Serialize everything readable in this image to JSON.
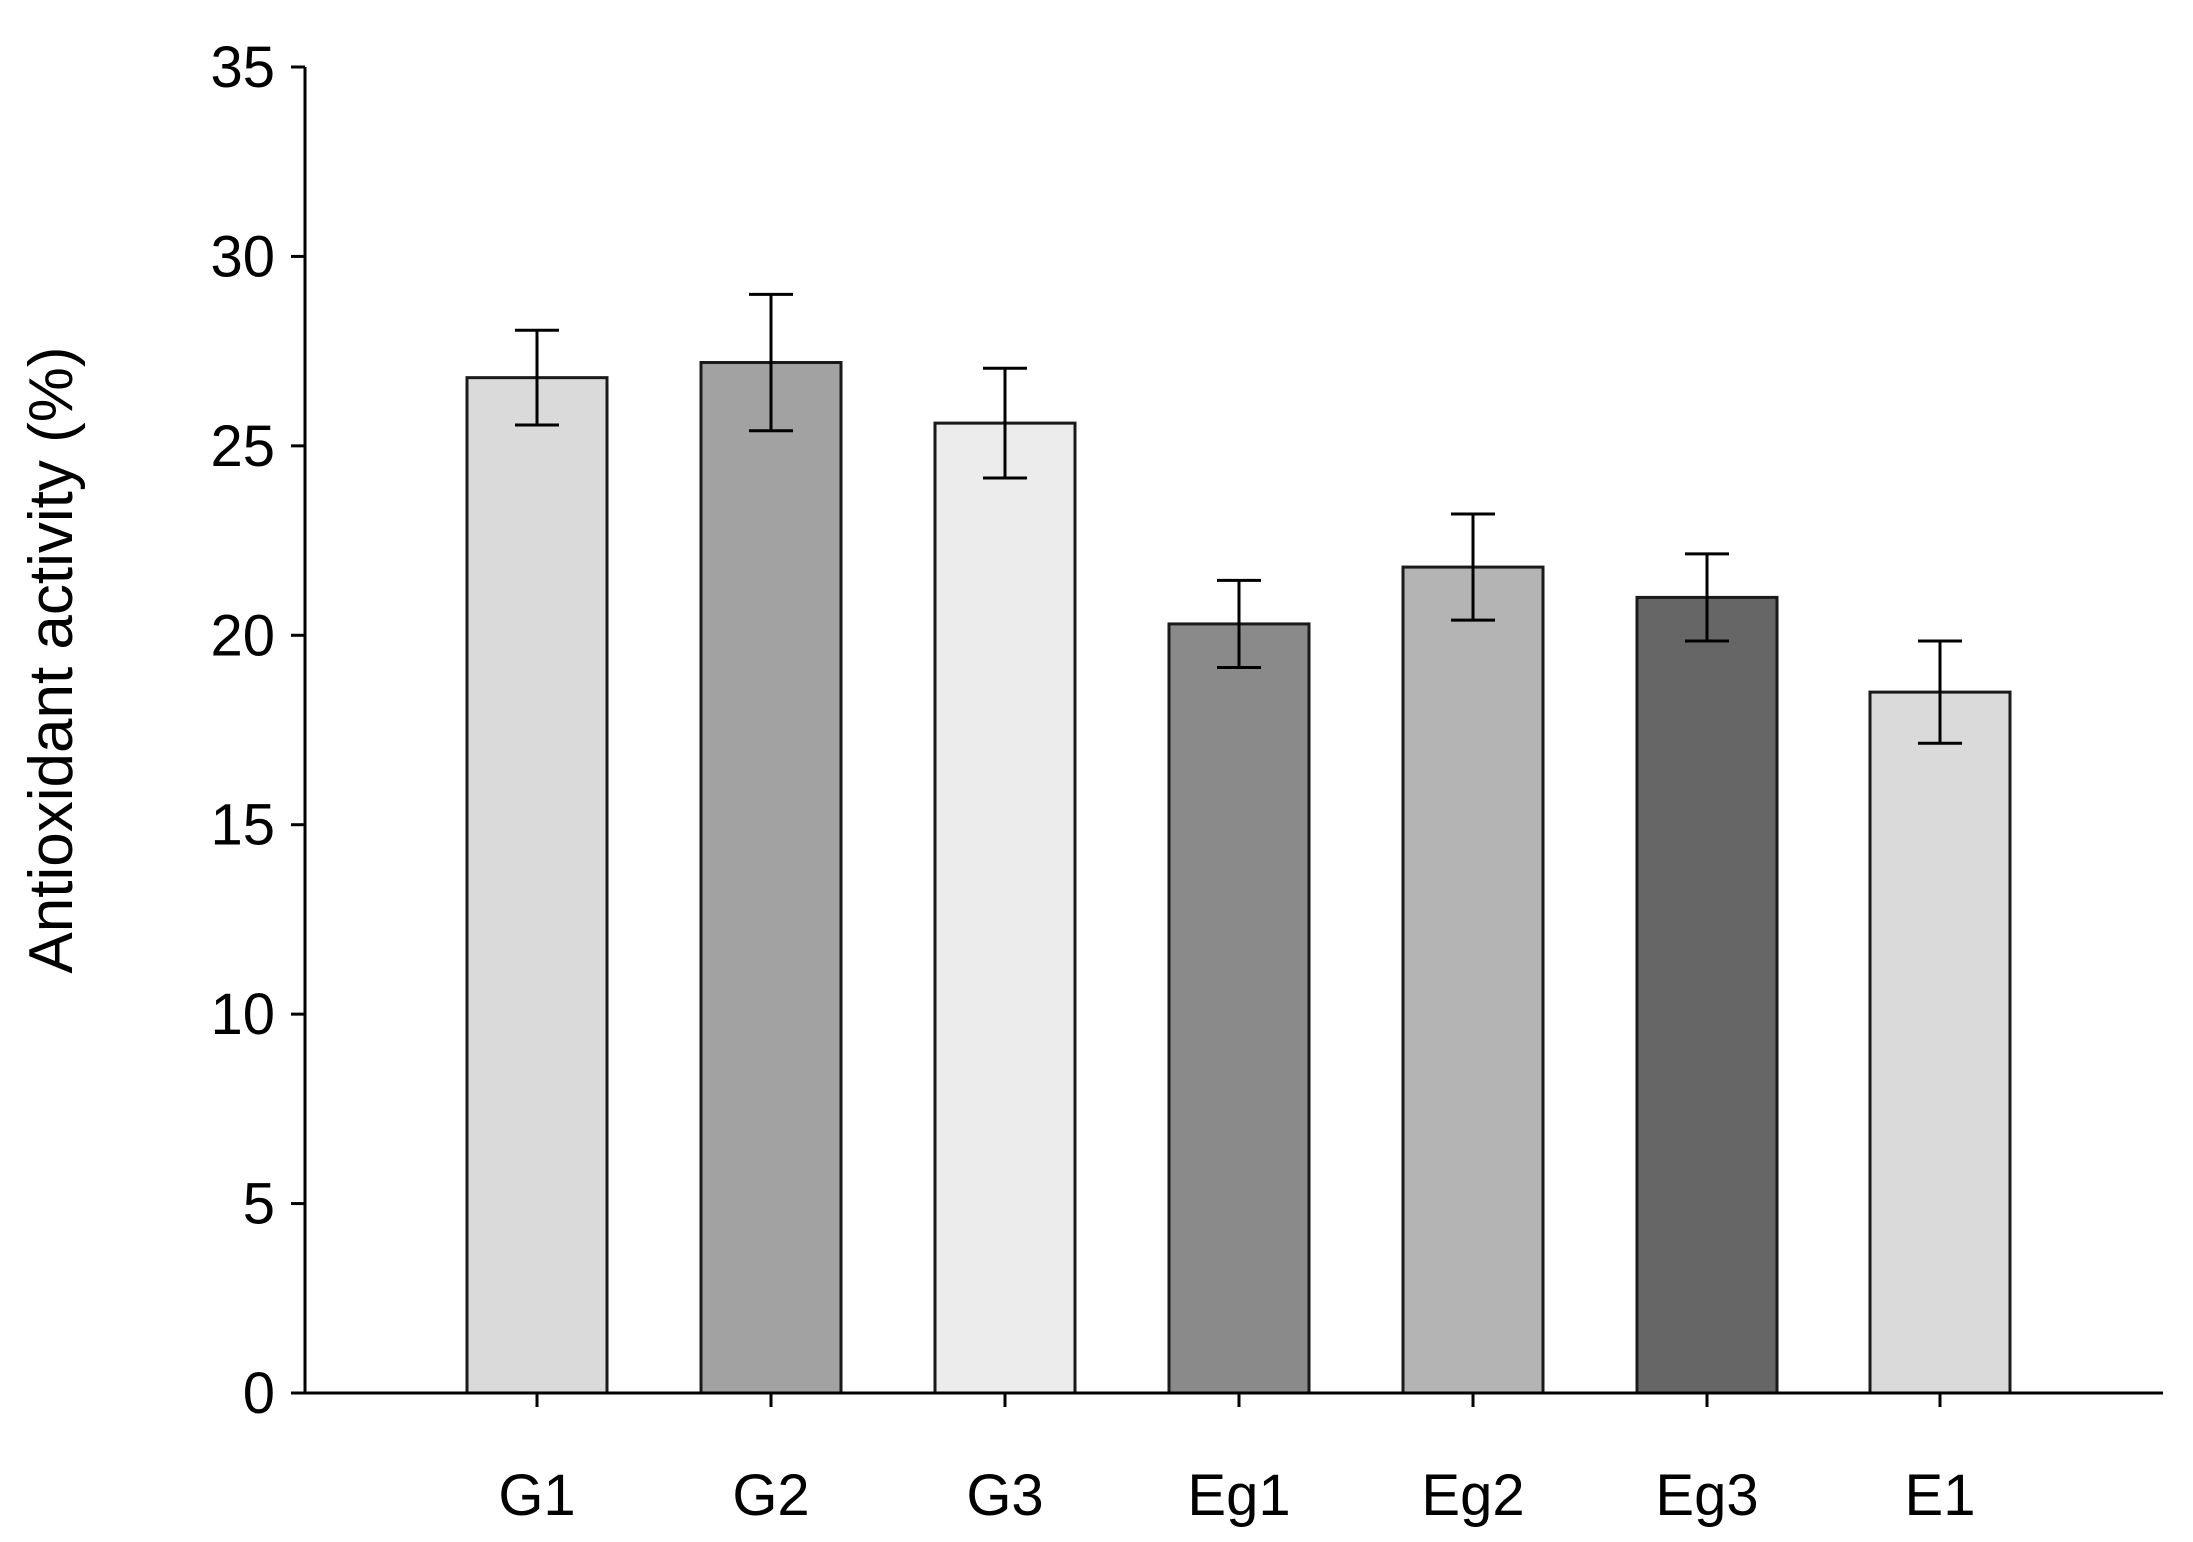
{
  "chart_data": {
    "type": "bar",
    "title": "",
    "xlabel": "",
    "ylabel": "Antioxidant activity (%)",
    "ylim": [
      0,
      35
    ],
    "yticks": [
      0,
      5,
      10,
      15,
      20,
      25,
      30,
      35
    ],
    "categories": [
      "G1",
      "G2",
      "G3",
      "Eg1",
      "Eg2",
      "Eg3",
      "E1"
    ],
    "values": [
      26.8,
      27.2,
      25.6,
      20.3,
      21.8,
      21.0,
      18.5
    ],
    "errors": [
      1.25,
      1.8,
      1.45,
      1.15,
      1.4,
      1.15,
      1.35
    ],
    "colors": [
      "#dadada",
      "#a2a2a2",
      "#ececec",
      "#8a8a8a",
      "#b4b4b4",
      "#666666",
      "#dadada"
    ],
    "grid": false,
    "legend": "none"
  }
}
